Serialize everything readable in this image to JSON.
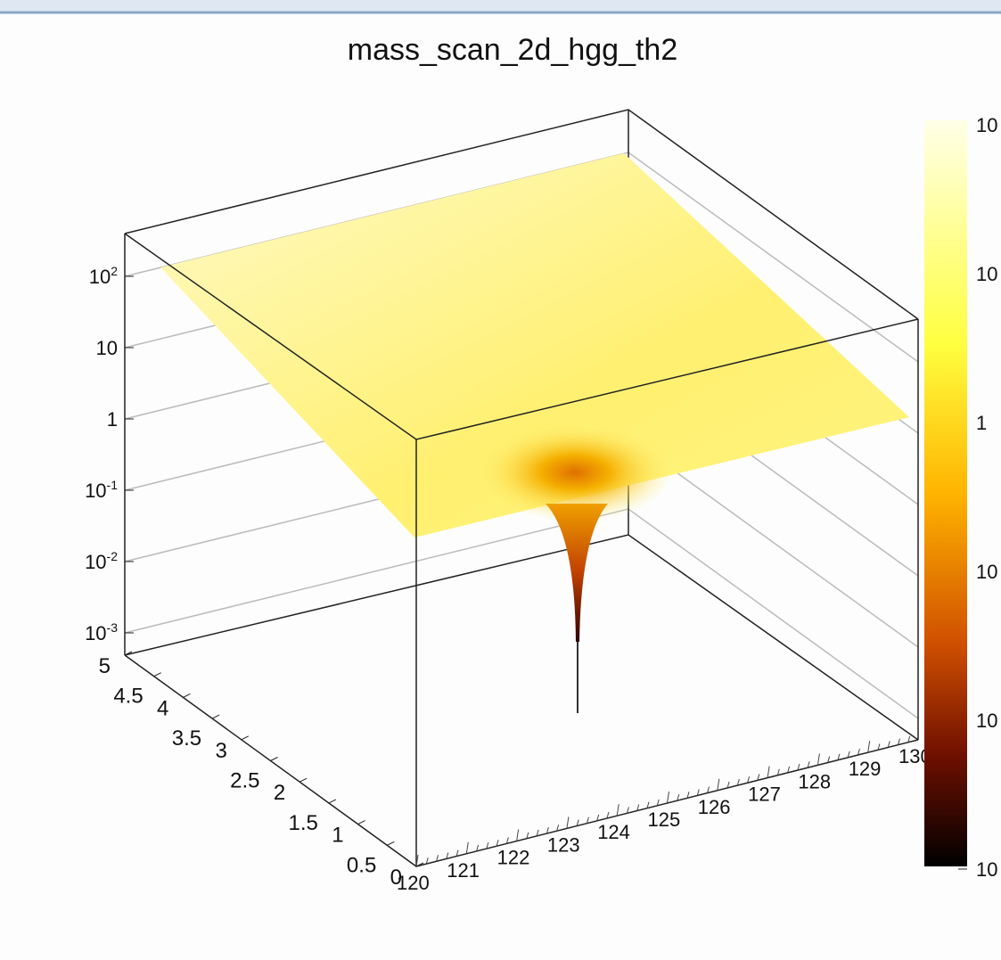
{
  "canvas": {
    "title": "mass_scan_2d_hgg_th2",
    "z_axis": {
      "ticks": [
        {
          "text": "10",
          "sup": "2"
        },
        {
          "text": "10"
        },
        {
          "text": "1"
        },
        {
          "text": "10",
          "sup": "-1"
        },
        {
          "text": "10",
          "sup": "-2"
        },
        {
          "text": "10",
          "sup": "-3"
        }
      ]
    },
    "y_axis": {
      "ticks": [
        "5",
        "4.5",
        "4",
        "3.5",
        "3",
        "2.5",
        "2",
        "1.5",
        "1",
        "0.5",
        "0"
      ]
    },
    "x_axis": {
      "ticks": [
        "120",
        "121",
        "122",
        "123",
        "124",
        "125",
        "126",
        "127",
        "128",
        "129",
        "130"
      ]
    },
    "palette": {
      "labels": [
        "10",
        "10",
        "1",
        "10",
        "10",
        "10"
      ]
    }
  }
}
